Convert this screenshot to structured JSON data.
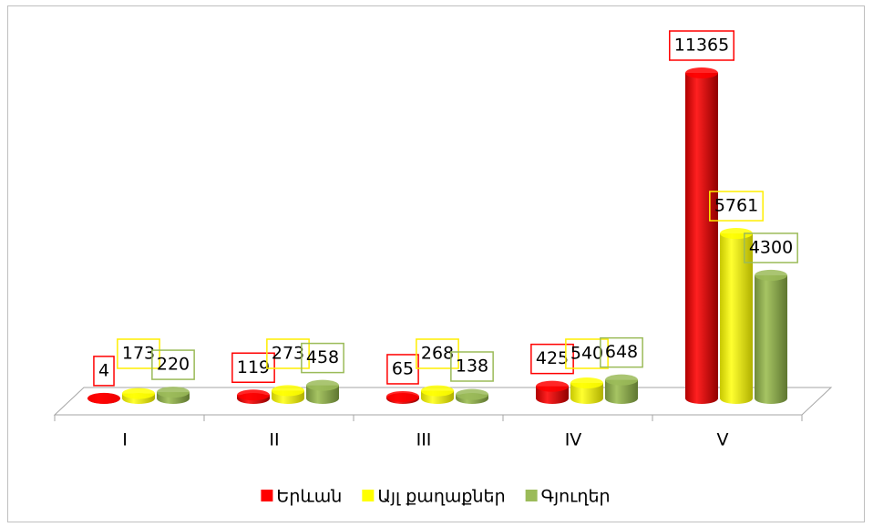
{
  "chart_data": {
    "type": "bar",
    "categories": [
      "I",
      "II",
      "III",
      "IV",
      "V"
    ],
    "series": [
      {
        "name": "Երևան",
        "color": "#ff0000",
        "values": [
          4,
          119,
          65,
          425,
          11365
        ]
      },
      {
        "name": "Այլ քաղաքներ",
        "color": "#ffff00",
        "values": [
          173,
          273,
          268,
          540,
          5761
        ]
      },
      {
        "name": "Գյուղեր",
        "color": "#9bbb59",
        "values": [
          220,
          458,
          138,
          648,
          4300
        ]
      }
    ],
    "legend": "bottom"
  }
}
